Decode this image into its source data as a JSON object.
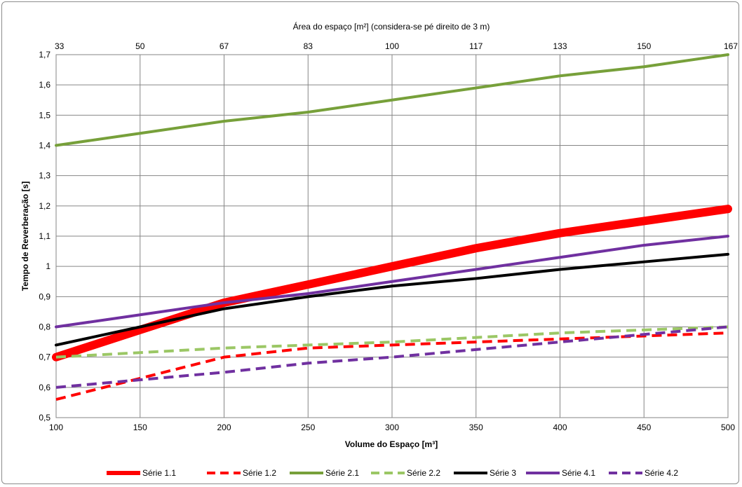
{
  "chart_data": {
    "type": "line",
    "title": "",
    "xlabel": "Volume do Espaço [m³]",
    "ylabel": "Tempo de Reverberação [s]",
    "x2label": "Área do espaço [m²] (considera-se pé direito de 3 m)",
    "xlim": [
      100,
      500
    ],
    "ylim": [
      0.5,
      1.7
    ],
    "x_ticks": [
      "100",
      "150",
      "200",
      "250",
      "300",
      "350",
      "400",
      "450",
      "500"
    ],
    "x2_ticks": [
      "33",
      "50",
      "67",
      "83",
      "100",
      "117",
      "133",
      "150",
      "167"
    ],
    "y_ticks": [
      "0,5",
      "0,6",
      "0,7",
      "0,8",
      "0,9",
      "1",
      "1,1",
      "1,2",
      "1,3",
      "1,4",
      "1,5",
      "1,6",
      "1,7"
    ],
    "grid": true,
    "legend_position": "bottom",
    "series": [
      {
        "name": "Série 1.1",
        "color": "#ff0000",
        "style": "solid-thick",
        "x": [
          100,
          150,
          200,
          250,
          300,
          350,
          400,
          450,
          500
        ],
        "y": [
          0.7,
          0.79,
          0.88,
          0.94,
          1.0,
          1.06,
          1.11,
          1.15,
          1.19
        ]
      },
      {
        "name": "Série 1.2",
        "color": "#ff0000",
        "style": "dashed",
        "x": [
          100,
          150,
          200,
          250,
          300,
          350,
          400,
          450,
          500
        ],
        "y": [
          0.56,
          0.63,
          0.7,
          0.73,
          0.74,
          0.75,
          0.76,
          0.77,
          0.78
        ]
      },
      {
        "name": "Série 2.1",
        "color": "#77a03a",
        "style": "solid",
        "x": [
          100,
          150,
          200,
          250,
          300,
          350,
          400,
          450,
          500
        ],
        "y": [
          1.4,
          1.44,
          1.48,
          1.51,
          1.55,
          1.59,
          1.63,
          1.66,
          1.7
        ]
      },
      {
        "name": "Série 2.2",
        "color": "#9bc765",
        "style": "dashed",
        "x": [
          100,
          150,
          200,
          250,
          300,
          350,
          400,
          450,
          500
        ],
        "y": [
          0.7,
          0.715,
          0.73,
          0.74,
          0.75,
          0.765,
          0.78,
          0.79,
          0.8
        ]
      },
      {
        "name": "Série 3",
        "color": "#000000",
        "style": "solid",
        "x": [
          100,
          150,
          200,
          250,
          300,
          350,
          400,
          450,
          500
        ],
        "y": [
          0.74,
          0.8,
          0.86,
          0.9,
          0.935,
          0.96,
          0.99,
          1.015,
          1.04
        ]
      },
      {
        "name": "Série 4.1",
        "color": "#7030a0",
        "style": "solid",
        "x": [
          100,
          150,
          200,
          250,
          300,
          350,
          400,
          450,
          500
        ],
        "y": [
          0.8,
          0.84,
          0.88,
          0.91,
          0.95,
          0.99,
          1.03,
          1.07,
          1.1
        ]
      },
      {
        "name": "Série 4.2",
        "color": "#7030a0",
        "style": "dashed",
        "x": [
          100,
          150,
          200,
          250,
          300,
          350,
          400,
          450,
          500
        ],
        "y": [
          0.6,
          0.625,
          0.65,
          0.68,
          0.7,
          0.725,
          0.75,
          0.775,
          0.8
        ]
      }
    ]
  }
}
